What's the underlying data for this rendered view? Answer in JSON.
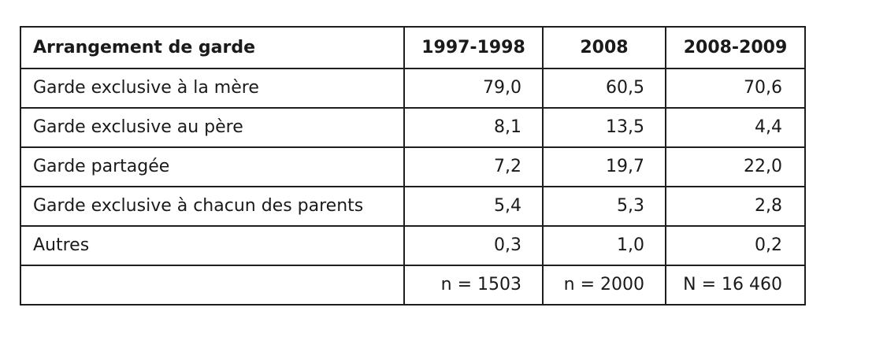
{
  "table": {
    "headers": [
      "Arrangement de garde",
      "1997-1998",
      "2008",
      "2008-2009"
    ],
    "rows": [
      [
        "Garde exclusive à la mère",
        "79,0",
        "60,5",
        "70,6"
      ],
      [
        "Garde exclusive au père",
        "8,1",
        "13,5",
        "4,4"
      ],
      [
        "Garde partagée",
        "7,2",
        "19,7",
        "22,0"
      ],
      [
        "Garde exclusive à chacun des parents",
        "5,4",
        "5,3",
        "2,8"
      ],
      [
        "Autres",
        "0,3",
        "1,0",
        "0,2"
      ]
    ],
    "sample_sizes": [
      "",
      "n = 1503",
      "n = 2000",
      "N = 16 460"
    ]
  }
}
